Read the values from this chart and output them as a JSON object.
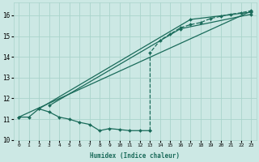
{
  "xlabel": "Humidex (Indice chaleur)",
  "ylabel": "",
  "bg_color": "#cce8e4",
  "grid_color": "#aad4cc",
  "line_color": "#1a6b5a",
  "xlim": [
    -0.5,
    23.5
  ],
  "ylim": [
    10,
    16.6
  ],
  "xticks": [
    0,
    1,
    2,
    3,
    4,
    5,
    6,
    7,
    8,
    9,
    10,
    11,
    12,
    13,
    14,
    15,
    16,
    17,
    18,
    19,
    20,
    21,
    22,
    23
  ],
  "yticks": [
    10,
    11,
    12,
    13,
    14,
    15,
    16
  ],
  "series": [
    {
      "x": [
        0,
        23
      ],
      "y": [
        11.1,
        16.2
      ],
      "style": "-",
      "marker": "D",
      "markersize": 2.0
    },
    {
      "comment": "second line from x=2,y=11.5 to x=17,y=15.8 to x=23,y=16.15",
      "x": [
        2,
        17,
        23
      ],
      "y": [
        11.5,
        15.8,
        16.15
      ],
      "style": "-",
      "marker": "D",
      "markersize": 2.0
    },
    {
      "x": [
        3,
        16,
        23
      ],
      "y": [
        11.65,
        15.35,
        16.05
      ],
      "style": "-",
      "marker": "D",
      "markersize": 2.0
    },
    {
      "x": [
        0,
        1,
        2,
        3,
        4,
        5,
        6,
        7,
        8,
        9,
        10,
        11,
        12,
        13
      ],
      "y": [
        11.1,
        11.1,
        11.5,
        11.35,
        11.1,
        11.0,
        10.85,
        10.75,
        10.45,
        10.55,
        10.5,
        10.45,
        10.45,
        10.45
      ],
      "style": "-",
      "marker": "D",
      "markersize": 2.0
    },
    {
      "x": [
        13,
        13,
        14,
        15,
        16,
        17,
        18,
        19,
        20,
        21,
        22,
        23
      ],
      "y": [
        10.45,
        14.2,
        14.8,
        15.1,
        15.4,
        15.55,
        15.65,
        15.85,
        15.95,
        16.05,
        16.12,
        16.22
      ],
      "style": "--",
      "marker": "D",
      "markersize": 2.0
    }
  ]
}
